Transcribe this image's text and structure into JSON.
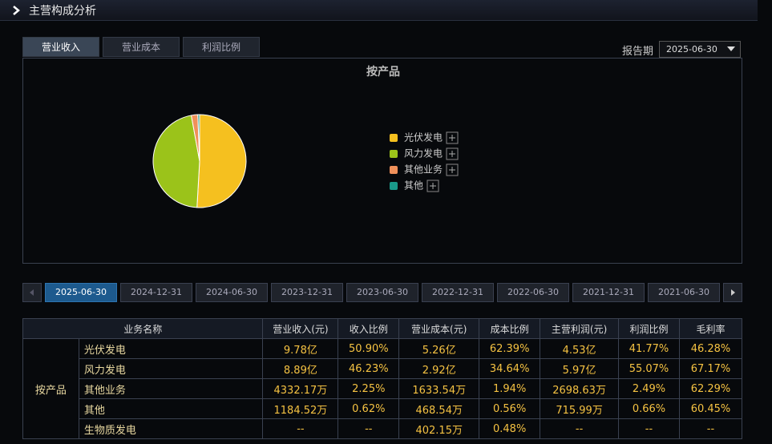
{
  "header": {
    "title": "主营构成分析"
  },
  "tabs": [
    "营业收入",
    "营业成本",
    "利润比例"
  ],
  "active_tab": 0,
  "report_period": {
    "label": "报告期",
    "value": "2025-06-30"
  },
  "chart_data": {
    "type": "pie",
    "title": "按产品",
    "categories": [
      "光伏发电",
      "风力发电",
      "其他业务",
      "其他"
    ],
    "values": [
      50.9,
      46.23,
      2.25,
      0.62
    ],
    "colors": [
      "#f5c01f",
      "#9bc31a",
      "#f0905a",
      "#1a9a8a"
    ]
  },
  "dates": [
    "2025-06-30",
    "2024-12-31",
    "2024-06-30",
    "2023-12-31",
    "2023-06-30",
    "2022-12-31",
    "2022-06-30",
    "2021-12-31",
    "2021-06-30"
  ],
  "active_date": 0,
  "table": {
    "columns": [
      "业务名称",
      "营业收入(元)",
      "收入比例",
      "营业成本(元)",
      "成本比例",
      "主营利润(元)",
      "利润比例",
      "毛利率"
    ],
    "group": "按产品",
    "rows": [
      [
        "光伏发电",
        "9.78亿",
        "50.90%",
        "5.26亿",
        "62.39%",
        "4.53亿",
        "41.77%",
        "46.28%"
      ],
      [
        "风力发电",
        "8.89亿",
        "46.23%",
        "2.92亿",
        "34.64%",
        "5.97亿",
        "55.07%",
        "67.17%"
      ],
      [
        "其他业务",
        "4332.17万",
        "2.25%",
        "1633.54万",
        "1.94%",
        "2698.63万",
        "2.49%",
        "62.29%"
      ],
      [
        "其他",
        "1184.52万",
        "0.62%",
        "468.54万",
        "0.56%",
        "715.99万",
        "0.66%",
        "60.45%"
      ],
      [
        "生物质发电",
        "--",
        "--",
        "402.15万",
        "0.48%",
        "--",
        "--",
        "--"
      ]
    ]
  }
}
